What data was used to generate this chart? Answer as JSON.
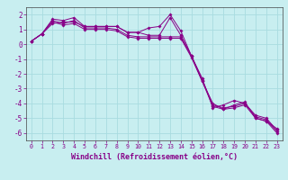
{
  "title": "",
  "xlabel": "Windchill (Refroidissement éolien,°C)",
  "ylabel": "",
  "background_color": "#c8eef0",
  "grid_color": "#a8dce0",
  "line_color": "#880088",
  "xlim": [
    -0.5,
    23.5
  ],
  "ylim": [
    -6.5,
    2.5
  ],
  "yticks": [
    -6,
    -5,
    -4,
    -3,
    -2,
    -1,
    0,
    1,
    2
  ],
  "xticks": [
    0,
    1,
    2,
    3,
    4,
    5,
    6,
    7,
    8,
    9,
    10,
    11,
    12,
    13,
    14,
    15,
    16,
    17,
    18,
    19,
    20,
    21,
    22,
    23
  ],
  "series": [
    [
      0.2,
      0.7,
      1.7,
      1.6,
      1.8,
      1.2,
      1.2,
      1.2,
      1.2,
      0.8,
      0.8,
      1.1,
      1.2,
      2.0,
      0.9,
      -0.8,
      -2.3,
      -4.3,
      -4.1,
      -3.8,
      -4.0,
      -4.8,
      -5.0,
      -5.8
    ],
    [
      0.2,
      0.7,
      1.4,
      1.5,
      1.5,
      1.2,
      1.2,
      1.2,
      1.2,
      0.8,
      0.8,
      0.6,
      0.6,
      1.8,
      0.6,
      -0.8,
      -2.5,
      -4.0,
      -4.4,
      -4.1,
      -3.9,
      -5.0,
      -5.2,
      -5.7
    ],
    [
      0.2,
      0.7,
      1.6,
      1.4,
      1.6,
      1.1,
      1.1,
      1.1,
      1.0,
      0.6,
      0.5,
      0.5,
      0.5,
      0.5,
      0.5,
      -0.8,
      -2.4,
      -4.1,
      -4.3,
      -4.2,
      -4.0,
      -4.9,
      -5.1,
      -5.9
    ],
    [
      0.2,
      0.7,
      1.5,
      1.3,
      1.4,
      1.0,
      1.0,
      1.0,
      0.9,
      0.5,
      0.4,
      0.4,
      0.4,
      0.4,
      0.4,
      -0.9,
      -2.5,
      -4.2,
      -4.4,
      -4.3,
      -4.1,
      -5.0,
      -5.2,
      -6.0
    ]
  ]
}
